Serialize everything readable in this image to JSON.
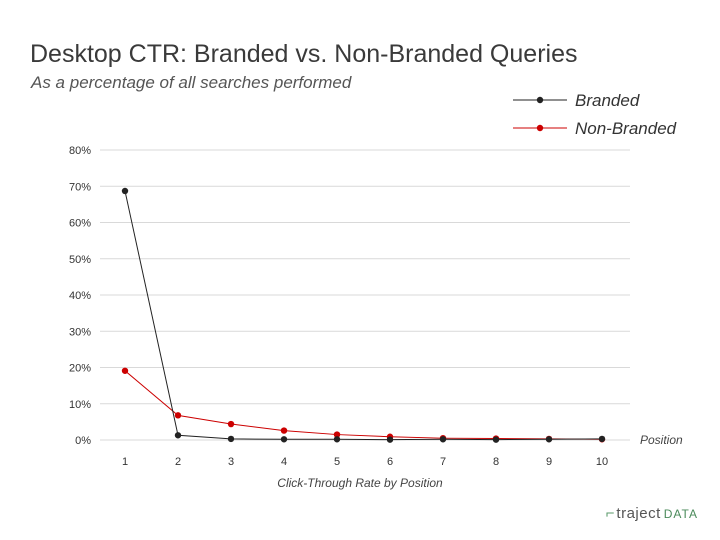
{
  "title": "Desktop CTR: Branded vs. Non-Branded Queries",
  "subtitle": "As a percentage of all searches performed",
  "brand": {
    "mark": "⌐",
    "word": "traject",
    "suffix": "DATA"
  },
  "chart_data": {
    "type": "line",
    "x": [
      1,
      2,
      3,
      4,
      5,
      6,
      7,
      8,
      9,
      10
    ],
    "series": [
      {
        "name": "Branded",
        "color": "#222222",
        "values": [
          68.7,
          1.3,
          0.3,
          0.2,
          0.2,
          0.1,
          0.2,
          0.1,
          0.2,
          0.3
        ]
      },
      {
        "name": "Non-Branded",
        "color": "#cc0000",
        "values": [
          19.1,
          6.8,
          4.4,
          2.6,
          1.5,
          0.9,
          0.5,
          0.4,
          0.3,
          0.2
        ]
      }
    ],
    "ylim": [
      0,
      80
    ],
    "yticks": [
      "0%",
      "10%",
      "20%",
      "30%",
      "40%",
      "50%",
      "60%",
      "70%",
      "80%"
    ],
    "xlabel": "Click-Through Rate by Position",
    "xaxis_end_label": "Position",
    "legend_position": "top-right",
    "grid": true
  }
}
